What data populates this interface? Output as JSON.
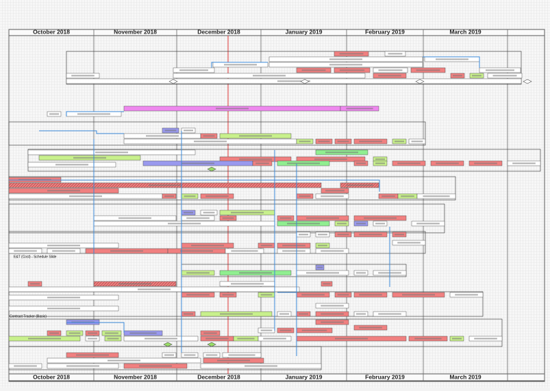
{
  "header": {
    "months": [
      "October 2018",
      "November 2018",
      "December 2018",
      "January 2019",
      "February 2019",
      "March 2019"
    ]
  },
  "footer": {
    "months": [
      "October 2018",
      "November 2018",
      "December 2018",
      "January 2019",
      "February 2019",
      "March 2019"
    ]
  },
  "rows": {
    "labels": [
      "E&T (Cost) - Schedule Slide",
      "Contract Tracker (Basic)"
    ]
  }
}
